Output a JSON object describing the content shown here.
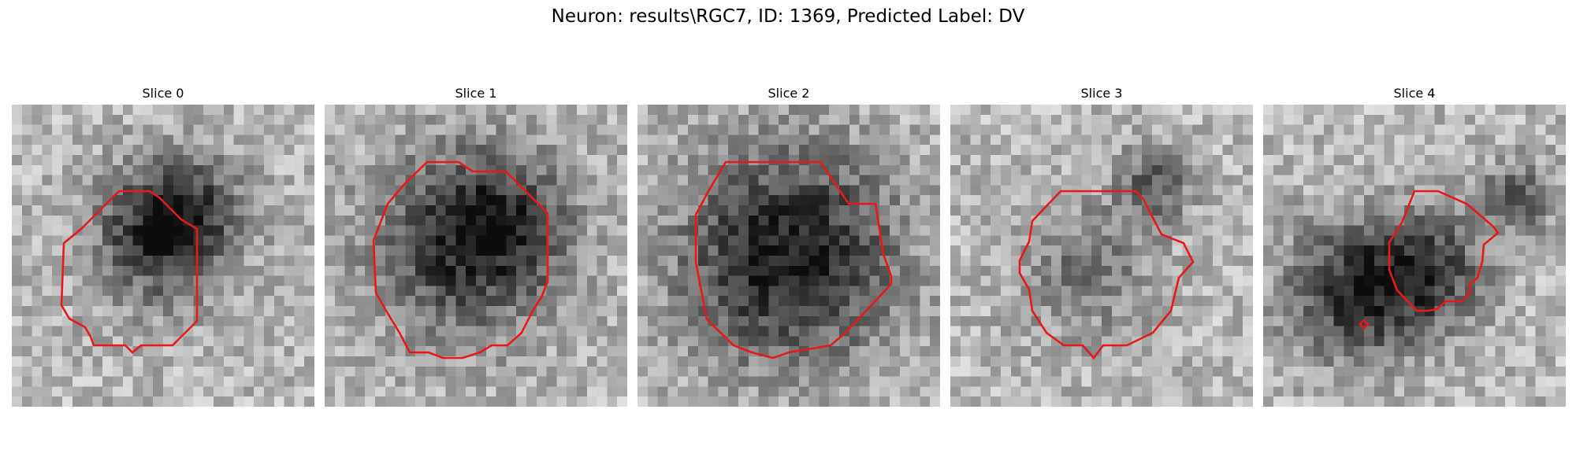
{
  "figure": {
    "title": "Neuron: results\\RGC7, ID: 1369, Predicted Label: DV",
    "contour_color": "#e8191a"
  },
  "slices": [
    {
      "title": "Slice 0"
    },
    {
      "title": "Slice 1"
    },
    {
      "title": "Slice 2"
    },
    {
      "title": "Slice 3"
    },
    {
      "title": "Slice 4"
    }
  ]
}
